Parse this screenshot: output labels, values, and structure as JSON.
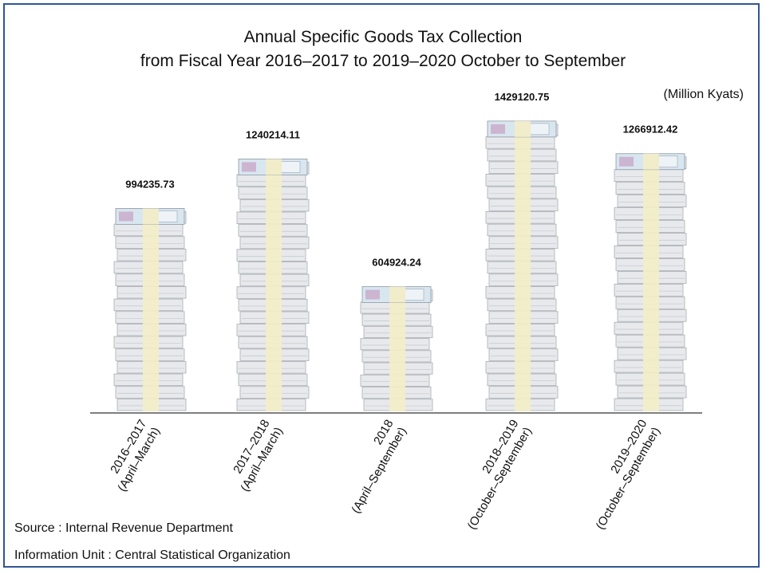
{
  "chart_data": {
    "type": "bar",
    "title_line1": "Annual Specific Goods Tax Collection",
    "title_line2": "from Fiscal Year  2016–2017 to 2019–2020 October to September",
    "unit": "(Million Kyats)",
    "categories": [
      [
        "2016–2017",
        "(April–March)"
      ],
      [
        "2017–2018",
        "(April–March)"
      ],
      [
        "2018",
        "(April–September)"
      ],
      [
        "2018–2019",
        "(October–September)"
      ],
      [
        "2019–2020",
        "(October–September)"
      ]
    ],
    "values": [
      994235.73,
      1240214.11,
      604924.24,
      1429120.75,
      1266912.42
    ],
    "value_labels": [
      "994235.73",
      "1240214.11",
      "604924.24",
      "1429120.75",
      "1266912.42"
    ],
    "ylim": [
      0,
      1500000
    ],
    "grid": false,
    "bar_style": "stacked banknote bundles",
    "colors": {
      "note": "#e7e9ec",
      "band": "#f3eec8",
      "axis": "#333333",
      "frame": "#2f5597"
    }
  },
  "footer": {
    "source": "Source : Internal Revenue Department",
    "info": "Information Unit :  Central Statistical Organization"
  }
}
